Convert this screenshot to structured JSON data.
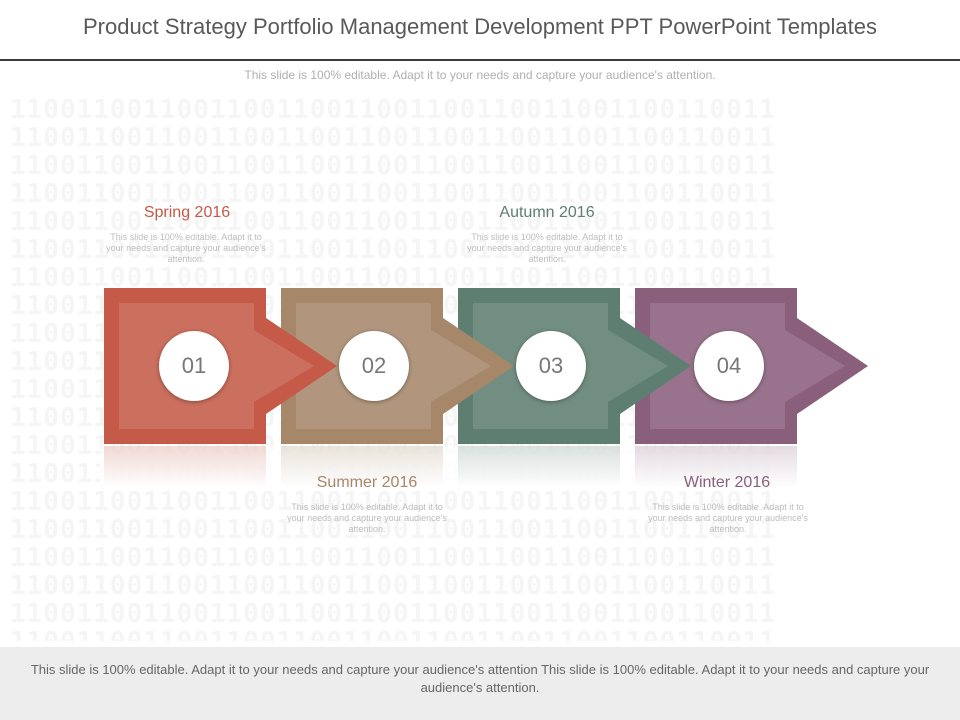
{
  "header": {
    "title": "Product Strategy Portfolio Management Development PPT PowerPoint Templates",
    "subtitle": "This slide is 100% editable. Adapt it to your needs and capture your audience's attention."
  },
  "background_pattern": "1100110011001100110011001100110011001100110011",
  "colors": {
    "step1": "#c45a47",
    "step2": "#a6876a",
    "step3": "#5e7e71",
    "step4": "#8a5f7c"
  },
  "steps": [
    {
      "number": "01",
      "label": "Spring 2016",
      "description": "This slide is 100% editable. Adapt it to your needs and capture your audience's attention.",
      "color": "#c45a47"
    },
    {
      "number": "02",
      "label": "Summer 2016",
      "description": "This slide is 100% editable. Adapt it to your needs and capture your audience's attention.",
      "color": "#a6876a"
    },
    {
      "number": "03",
      "label": "Autumn 2016",
      "description": "This slide is 100% editable. Adapt it to your needs and capture your audience's attention.",
      "color": "#5e7e71"
    },
    {
      "number": "04",
      "label": "Winter 2016",
      "description": "This slide is 100% editable. Adapt it to your needs and capture your audience's attention.",
      "color": "#8a5f7c"
    }
  ],
  "footer": {
    "text": "This slide is 100% editable. Adapt it to your needs and capture your audience's attention This slide is 100% editable. Adapt it to your needs and capture your audience's attention."
  }
}
